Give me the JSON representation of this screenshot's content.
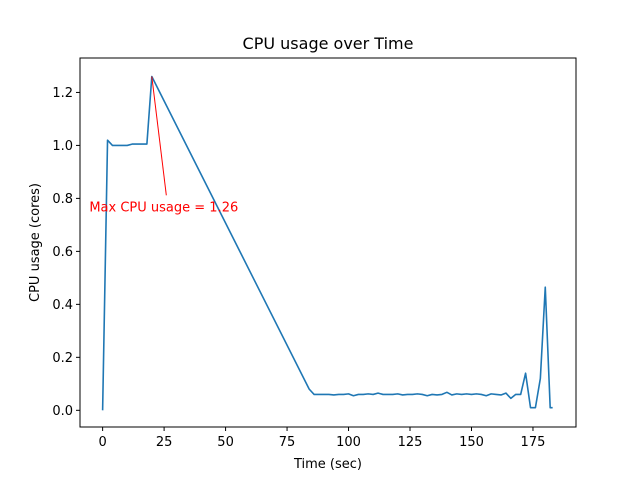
{
  "chart_data": {
    "type": "line",
    "title": "CPU usage over Time",
    "xlabel": "Time (sec)",
    "ylabel": "CPU usage (cores)",
    "xlim": [
      -9.2,
      192.5
    ],
    "ylim": [
      -0.063,
      1.33
    ],
    "xticks": [
      0,
      25,
      50,
      75,
      100,
      125,
      150,
      175
    ],
    "yticks": [
      0.0,
      0.2,
      0.4,
      0.6,
      0.8,
      1.0,
      1.2
    ],
    "xtick_labels": [
      "0",
      "25",
      "50",
      "75",
      "100",
      "125",
      "150",
      "175"
    ],
    "ytick_labels": [
      "0.0",
      "0.2",
      "0.4",
      "0.6",
      "0.8",
      "1.0",
      "1.2"
    ],
    "grid": false,
    "series": [
      {
        "color": "#1f77b4",
        "x": [
          0,
          2,
          3,
          4,
          6,
          8,
          10,
          12,
          14,
          16,
          18,
          20,
          84,
          86,
          88,
          90,
          92,
          94,
          96,
          98,
          100,
          102,
          104,
          106,
          108,
          110,
          112,
          114,
          116,
          118,
          120,
          122,
          124,
          126,
          128,
          130,
          132,
          134,
          136,
          138,
          140,
          142,
          144,
          146,
          148,
          150,
          152,
          154,
          156,
          158,
          160,
          162,
          164,
          166,
          168,
          170,
          172,
          174,
          176,
          178,
          180,
          182,
          183
        ],
        "y": [
          0.0,
          1.02,
          1.01,
          1.0,
          1.0,
          1.0,
          1.0,
          1.005,
          1.005,
          1.005,
          1.005,
          1.26,
          0.08,
          0.06,
          0.06,
          0.06,
          0.06,
          0.058,
          0.06,
          0.06,
          0.062,
          0.055,
          0.06,
          0.06,
          0.062,
          0.06,
          0.065,
          0.06,
          0.06,
          0.06,
          0.062,
          0.058,
          0.06,
          0.06,
          0.062,
          0.06,
          0.055,
          0.06,
          0.058,
          0.06,
          0.068,
          0.058,
          0.062,
          0.06,
          0.062,
          0.06,
          0.062,
          0.06,
          0.055,
          0.062,
          0.06,
          0.058,
          0.065,
          0.045,
          0.06,
          0.06,
          0.14,
          0.01,
          0.01,
          0.12,
          0.465,
          0.01,
          0.01
        ]
      }
    ],
    "annotations": [
      {
        "text": "Max CPU usage = 1.26",
        "color": "#ff0000",
        "xy": [
          20,
          1.26
        ],
        "xytext": [
          -5,
          0.77
        ]
      }
    ]
  }
}
